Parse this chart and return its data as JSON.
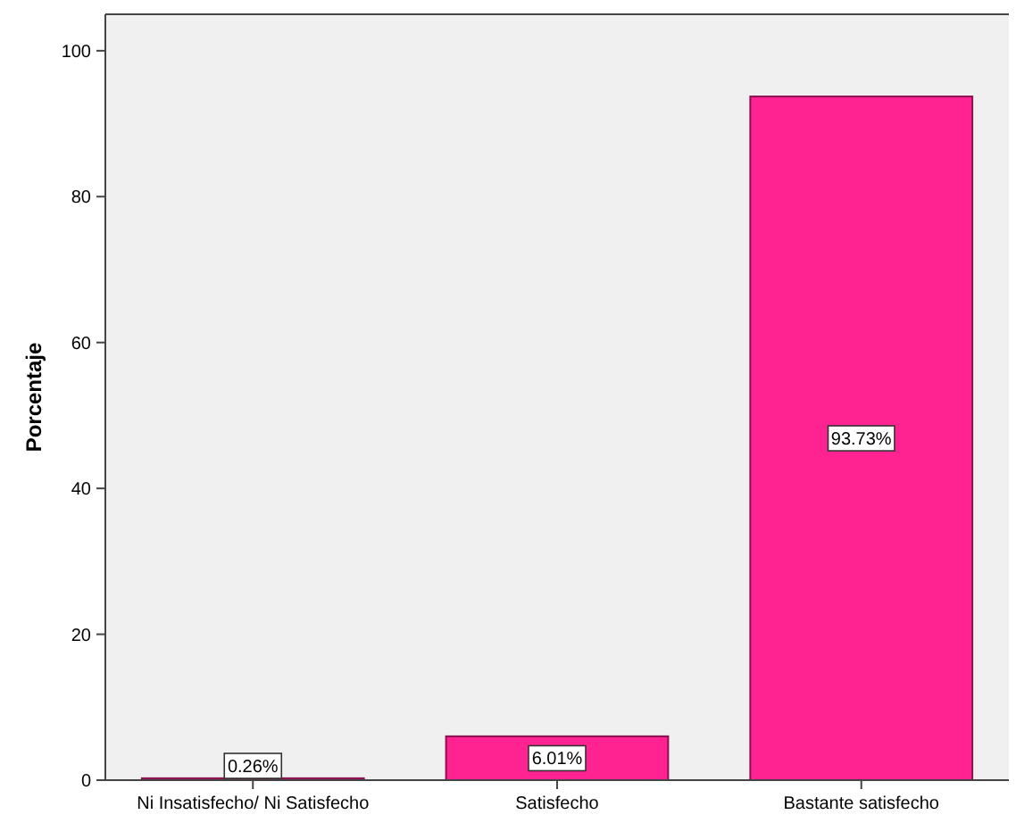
{
  "chart_data": {
    "type": "bar",
    "ylabel": "Porcentaje",
    "categories": [
      "Ni Insatisfecho/ Ni Satisfecho",
      "Satisfecho",
      "Bastante satisfecho"
    ],
    "values": [
      0.26,
      6.01,
      93.73
    ],
    "value_labels": [
      "0.26%",
      "6.01%",
      "93.73%"
    ],
    "color": "#ff2291",
    "ylim": [
      0,
      105
    ],
    "yticks": [
      0,
      20,
      40,
      60,
      80,
      100
    ],
    "grid": false
  }
}
